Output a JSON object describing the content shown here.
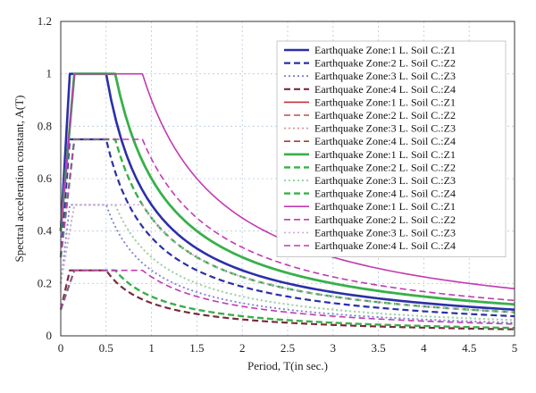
{
  "chart_data": {
    "type": "line",
    "title": "",
    "xlabel": "Period, T(in sec.)",
    "ylabel": "Spectral acceleration constant, A(T)",
    "xlim": [
      0,
      5
    ],
    "ylim": [
      0,
      1.2
    ],
    "x_ticks": [
      "0",
      "0.5",
      "1",
      "1.5",
      "2",
      "2.5",
      "3",
      "3.5",
      "4",
      "4.5",
      "5"
    ],
    "y_ticks": [
      "0",
      "0.2",
      "0.4",
      "0.6",
      "0.8",
      "1",
      "1.2"
    ],
    "grid": true,
    "legend_position": "top-right",
    "series": [
      {
        "name": "Earthquake Zone:1 L. Soil C.:Z1",
        "color": "#2b2fa8",
        "dash": "solid",
        "width": 2.6,
        "amax": 1.0,
        "t1": 0.1,
        "t2": 0.5,
        "n": 1
      },
      {
        "name": "Earthquake Zone:2 L. Soil C.:Z2",
        "color": "#2b2fa8",
        "dash": "dashed",
        "width": 2.2,
        "amax": 0.75,
        "t1": 0.1,
        "t2": 0.5,
        "n": 1
      },
      {
        "name": "Earthquake Zone:3 L. Soil C.:Z3",
        "color": "#7a7fd0",
        "dash": "dotted",
        "width": 1.8,
        "amax": 0.5,
        "t1": 0.1,
        "t2": 0.5,
        "n": 1
      },
      {
        "name": "Earthquake Zone:4 L. Soil C.:Z4",
        "color": "#7a2a3a",
        "dash": "dashed",
        "width": 2.2,
        "amax": 0.25,
        "t1": 0.1,
        "t2": 0.5,
        "n": 1
      },
      {
        "name": "Earthquake Zone:1 L. Soil C.:Z1",
        "color": "#c0303a",
        "dash": "solid",
        "width": 1.6,
        "amax": 1.0,
        "t1": 0.15,
        "t2": 0.6,
        "n": 1
      },
      {
        "name": "Earthquake Zone:2 L. Soil C.:Z2",
        "color": "#c24a4a",
        "dash": "dashed",
        "width": 1.6,
        "amax": 0.75,
        "t1": 0.15,
        "t2": 0.6,
        "n": 1
      },
      {
        "name": "Earthquake Zone:3 L. Soil C.:Z3",
        "color": "#d89090",
        "dash": "dotted",
        "width": 1.6,
        "amax": 0.5,
        "t1": 0.15,
        "t2": 0.6,
        "n": 1
      },
      {
        "name": "Earthquake Zone:4 L. Soil C.:Z4",
        "color": "#b03a3a",
        "dash": "dashed",
        "width": 1.6,
        "amax": 0.25,
        "t1": 0.15,
        "t2": 0.6,
        "n": 1
      },
      {
        "name": "Earthquake Zone:1 L. Soil C.:Z1",
        "color": "#38b04a",
        "dash": "solid",
        "width": 2.8,
        "amax": 1.0,
        "t1": 0.15,
        "t2": 0.6,
        "n": 1
      },
      {
        "name": "Earthquake Zone:2 L. Soil C.:Z2",
        "color": "#38b04a",
        "dash": "dashed",
        "width": 2.4,
        "amax": 0.75,
        "t1": 0.15,
        "t2": 0.6,
        "n": 1
      },
      {
        "name": "Earthquake Zone:3 L. Soil C.:Z3",
        "color": "#9ad6a4",
        "dash": "dotted",
        "width": 2.0,
        "amax": 0.5,
        "t1": 0.15,
        "t2": 0.6,
        "n": 1
      },
      {
        "name": "Earthquake Zone:4 L. Soil C.:Z4",
        "color": "#38b04a",
        "dash": "dashed",
        "width": 2.4,
        "amax": 0.25,
        "t1": 0.15,
        "t2": 0.6,
        "n": 1
      },
      {
        "name": "Earthquake Zone:1 L. Soil C.:Z1",
        "color": "#c23ab0",
        "dash": "solid",
        "width": 1.6,
        "amax": 1.0,
        "t1": 0.15,
        "t2": 0.9,
        "n": 1
      },
      {
        "name": "Earthquake Zone:2 L. Soil C.:Z2",
        "color": "#c23ab0",
        "dash": "dashed",
        "width": 1.6,
        "amax": 0.75,
        "t1": 0.15,
        "t2": 0.9,
        "n": 1
      },
      {
        "name": "Earthquake Zone:3 L. Soil C.:Z3",
        "color": "#dca6d6",
        "dash": "dotted",
        "width": 1.6,
        "amax": 0.5,
        "t1": 0.15,
        "t2": 0.9,
        "n": 1
      },
      {
        "name": "Earthquake Zone:4 L. Soil C.:Z4",
        "color": "#c23ab0",
        "dash": "dashed",
        "width": 1.6,
        "amax": 0.25,
        "t1": 0.15,
        "t2": 0.9,
        "n": 1
      }
    ]
  }
}
